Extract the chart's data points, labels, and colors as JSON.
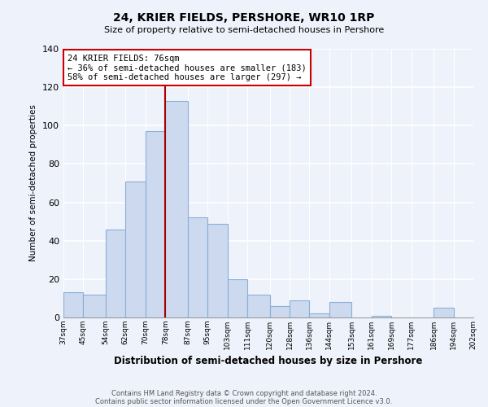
{
  "title": "24, KRIER FIELDS, PERSHORE, WR10 1RP",
  "subtitle": "Size of property relative to semi-detached houses in Pershore",
  "xlabel": "Distribution of semi-detached houses by size in Pershore",
  "ylabel": "Number of semi-detached properties",
  "bar_color": "#ccd9ee",
  "bar_edge_color": "#8ab0d8",
  "highlight_line_color": "#aa0000",
  "bin_edges": [
    37,
    45,
    54,
    62,
    70,
    78,
    87,
    95,
    103,
    111,
    120,
    128,
    136,
    144,
    153,
    161,
    169,
    177,
    186,
    194,
    202
  ],
  "bin_labels": [
    "37sqm",
    "45sqm",
    "54sqm",
    "62sqm",
    "70sqm",
    "78sqm",
    "87sqm",
    "95sqm",
    "103sqm",
    "111sqm",
    "120sqm",
    "128sqm",
    "136sqm",
    "144sqm",
    "153sqm",
    "161sqm",
    "169sqm",
    "177sqm",
    "186sqm",
    "194sqm",
    "202sqm"
  ],
  "counts": [
    13,
    12,
    46,
    71,
    97,
    113,
    52,
    49,
    20,
    12,
    6,
    9,
    2,
    8,
    0,
    1,
    0,
    0,
    5,
    0
  ],
  "ylim": [
    0,
    140
  ],
  "yticks": [
    0,
    20,
    40,
    60,
    80,
    100,
    120,
    140
  ],
  "annotation_title": "24 KRIER FIELDS: 76sqm",
  "annotation_line1": "← 36% of semi-detached houses are smaller (183)",
  "annotation_line2": "58% of semi-detached houses are larger (297) →",
  "annotation_box_color": "#ffffff",
  "annotation_box_edge": "#cc0000",
  "background_color": "#eef2fa",
  "footer_line1": "Contains HM Land Registry data © Crown copyright and database right 2024.",
  "footer_line2": "Contains public sector information licensed under the Open Government Licence v3.0."
}
